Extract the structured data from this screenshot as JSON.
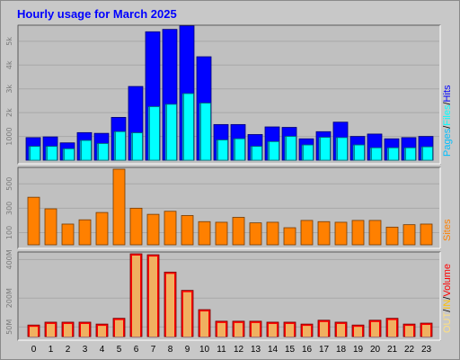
{
  "chart_data": {
    "title": "Hourly usage for March 2025",
    "x_tick_labels": [
      "0",
      "1",
      "2",
      "3",
      "4",
      "5",
      "6",
      "7",
      "8",
      "9",
      "10",
      "11",
      "12",
      "13",
      "14",
      "15",
      "16",
      "17",
      "18",
      "19",
      "20",
      "21",
      "22",
      "23"
    ],
    "colors": {
      "hits": "#0000ff",
      "files": "#00ffff",
      "pages": "#00c0ff",
      "sites": "#ff8000",
      "volume": "#ff0000",
      "in": "#ffc000",
      "out": "#ffe080",
      "plot_bg": "#c0c0c0",
      "title": "#0000ff"
    },
    "panels": [
      {
        "type": "bar",
        "name": "hits-files-pages",
        "y_ticks": [
          "1000",
          "2k",
          "3k",
          "4k",
          "5k"
        ],
        "y_tick_values": [
          1000,
          2000,
          3000,
          4000,
          5000
        ],
        "ylim": [
          0,
          5600
        ],
        "series": [
          {
            "name": "Hits",
            "color": "#0000ff",
            "values": [
              950,
              980,
              730,
              1160,
              1130,
              1800,
              3100,
              5400,
              5500,
              5650,
              4350,
              1500,
              1500,
              1080,
              1400,
              1380,
              900,
              1200,
              1600,
              1000,
              1100,
              900,
              950,
              1000
            ]
          },
          {
            "name": "Pages",
            "color": "#00c0ff",
            "values": [
              580,
              580,
              480,
              830,
              700,
              1200,
              1150,
              2250,
              2350,
              2800,
              2400,
              850,
              900,
              580,
              780,
              1000,
              640,
              960,
              950,
              640,
              520,
              520,
              520,
              560
            ]
          },
          {
            "name": "Files",
            "color": "#00ffff",
            "values": [
              580,
              580,
              480,
              830,
              700,
              1200,
              1150,
              2250,
              2350,
              2800,
              2400,
              850,
              900,
              580,
              780,
              1000,
              640,
              960,
              950,
              640,
              520,
              520,
              520,
              560
            ]
          }
        ],
        "legend_parts": [
          {
            "text": "Hits",
            "color": "#0000ff"
          },
          {
            "text": "/",
            "color": "#000000"
          },
          {
            "text": "Files",
            "color": "#00ffff"
          },
          {
            "text": "/",
            "color": "#000000"
          },
          {
            "text": "Pages",
            "color": "#00c0ff"
          }
        ]
      },
      {
        "type": "bar",
        "name": "sites",
        "y_ticks": [
          "100",
          "300",
          "500"
        ],
        "y_tick_values": [
          100,
          300,
          500
        ],
        "ylim": [
          0,
          620
        ],
        "series": [
          {
            "name": "Sites",
            "color": "#ff8000",
            "values": [
              390,
              295,
              170,
              205,
              265,
              620,
              300,
              250,
              275,
              240,
              190,
              185,
              225,
              180,
              185,
              140,
              200,
              190,
              185,
              200,
              200,
              145,
              165,
              170
            ]
          }
        ],
        "legend_parts": [
          {
            "text": "Sites",
            "color": "#ff8000"
          }
        ]
      },
      {
        "type": "bar",
        "name": "volume",
        "y_ticks": [
          "50M",
          "200M",
          "400M"
        ],
        "y_tick_values": [
          50,
          200,
          400
        ],
        "ylim": [
          0,
          430
        ],
        "series": [
          {
            "name": "Volume",
            "color": "#ff0000",
            "values": [
              60,
              75,
              75,
              75,
              65,
              95,
              430,
              425,
              335,
              240,
              140,
              80,
              80,
              80,
              75,
              75,
              65,
              85,
              75,
              60,
              85,
              95,
              65,
              70
            ]
          }
        ],
        "legend_parts": [
          {
            "text": "Volume",
            "color": "#ff0000"
          },
          {
            "text": "/",
            "color": "#000000"
          },
          {
            "text": "IN",
            "color": "#ffc000"
          },
          {
            "text": "/",
            "color": "#000000"
          },
          {
            "text": "OUT",
            "color": "#ffe080"
          }
        ]
      }
    ]
  }
}
